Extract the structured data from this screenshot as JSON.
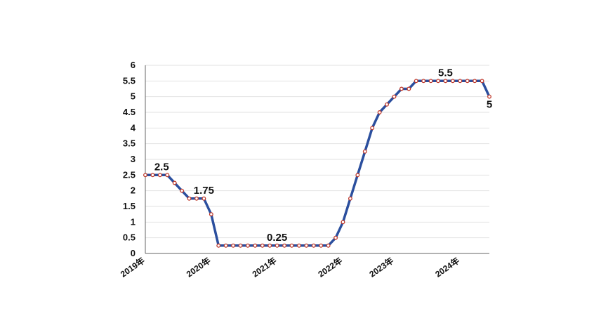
{
  "chart_data": {
    "type": "line",
    "title": "",
    "xlabel": "",
    "ylabel": "",
    "ylim": [
      0,
      6
    ],
    "yticks": [
      "0",
      "0.5",
      "1",
      "1.5",
      "2",
      "2.5",
      "3",
      "3.5",
      "4",
      "4.5",
      "5",
      "5.5",
      "6"
    ],
    "xtick_labels": [
      "2019年",
      "2020年",
      "2021年",
      "2022年",
      "2023年",
      "2024年"
    ],
    "grid": true,
    "colors": {
      "line": "#2b4f9e",
      "marker_fill": "#ffffff",
      "marker_stroke": "#c0392b"
    },
    "series": [
      {
        "values": [
          2.5,
          2.5,
          2.5,
          2.5,
          2.25,
          2.0,
          1.75,
          1.75,
          1.75,
          1.25,
          0.25,
          0.25,
          0.25,
          0.25,
          0.25,
          0.25,
          0.25,
          0.25,
          0.25,
          0.25,
          0.25,
          0.25,
          0.25,
          0.25,
          0.25,
          0.25,
          0.5,
          1.0,
          1.75,
          2.5,
          3.25,
          4.0,
          4.5,
          4.75,
          5.0,
          5.25,
          5.25,
          5.5,
          5.5,
          5.5,
          5.5,
          5.5,
          5.5,
          5.5,
          5.5,
          5.5,
          5.5,
          5.0
        ]
      }
    ],
    "annotations": [
      {
        "index": 3,
        "text": "2.5"
      },
      {
        "index": 8,
        "text": "1.75"
      },
      {
        "index": 18,
        "text": "0.25"
      },
      {
        "index": 41,
        "text": "5.5"
      },
      {
        "index": 47,
        "text": "5"
      }
    ]
  }
}
